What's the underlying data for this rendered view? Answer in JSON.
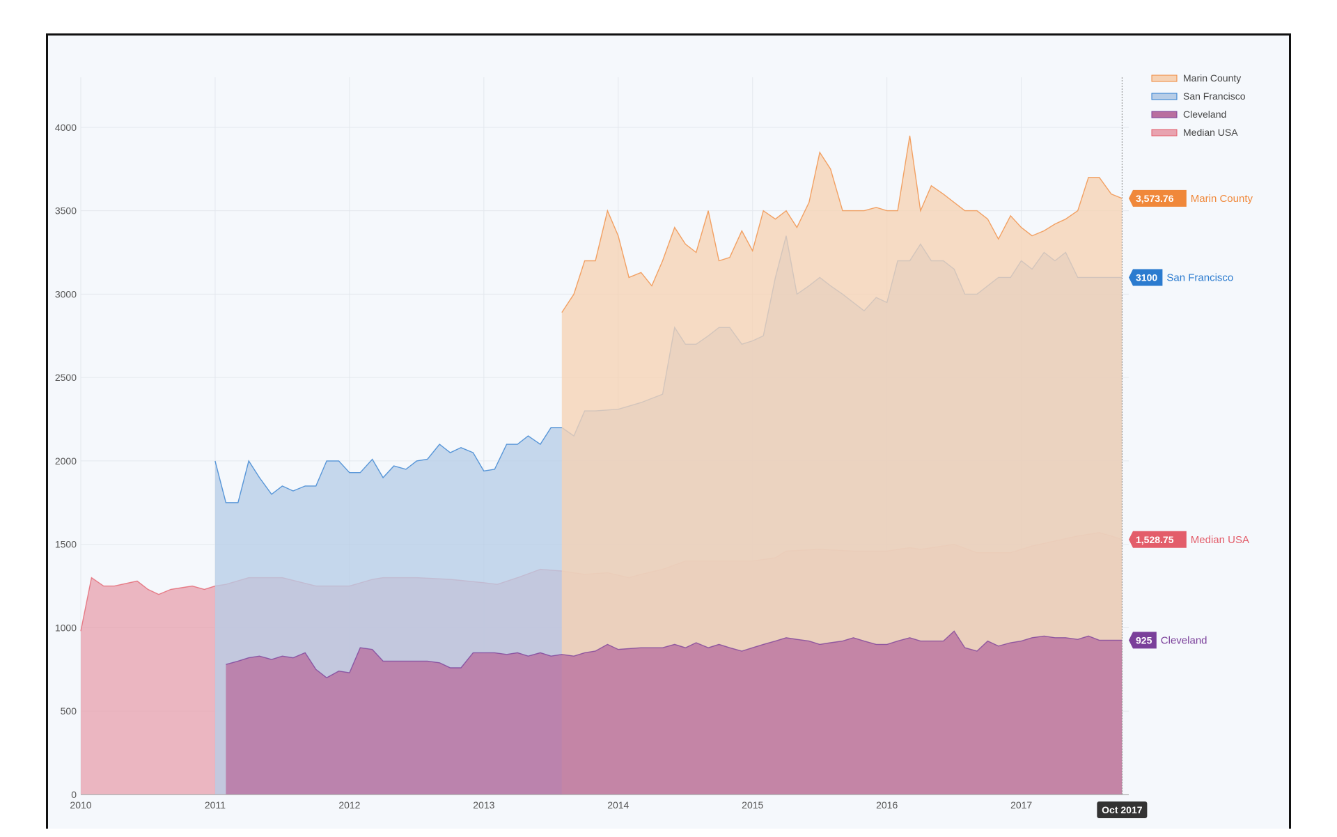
{
  "chart_data": {
    "type": "area",
    "title": "",
    "xlabel": "",
    "ylabel": "",
    "ylim": [
      0,
      4300
    ],
    "xlim": [
      2010.0,
      2017.8
    ],
    "y_ticks": [
      "0",
      "500",
      "1000",
      "1500",
      "2000",
      "2500",
      "3000",
      "3500",
      "4000"
    ],
    "x_ticks": [
      "2010",
      "2011",
      "2012",
      "2013",
      "2014",
      "2015",
      "2016",
      "2017"
    ],
    "x_tick_values": [
      2010,
      2011,
      2012,
      2013,
      2014,
      2015,
      2016,
      2017
    ],
    "y_tick_values": [
      0,
      500,
      1000,
      1500,
      2000,
      2500,
      3000,
      3500,
      4000
    ],
    "grid": true,
    "legend_position": "top-right",
    "cursor_label": "Oct 2017",
    "series": [
      {
        "name": "Median USA",
        "color": "#e35d6a",
        "fill": "#e8a3b0",
        "end_value_label": "1,528.75",
        "x": [
          2010.0,
          2010.08,
          2010.17,
          2010.25,
          2010.42,
          2010.5,
          2010.58,
          2010.67,
          2010.75,
          2010.83,
          2010.92,
          2011.0,
          2011.08,
          2011.25,
          2011.5,
          2011.75,
          2012.0,
          2012.17,
          2012.25,
          2012.5,
          2012.75,
          2013.0,
          2013.1,
          2013.25,
          2013.42,
          2013.58,
          2013.75,
          2013.92,
          2014.08,
          2014.17,
          2014.33,
          2014.5,
          2014.75,
          2015.0,
          2015.17,
          2015.25,
          2015.5,
          2015.75,
          2016.0,
          2016.17,
          2016.25,
          2016.5,
          2016.67,
          2016.92,
          2017.08,
          2017.25,
          2017.42,
          2017.5,
          2017.58,
          2017.67,
          2017.75
        ],
        "y": [
          980,
          1300,
          1250,
          1250,
          1280,
          1230,
          1200,
          1230,
          1240,
          1250,
          1230,
          1250,
          1260,
          1300,
          1300,
          1250,
          1250,
          1290,
          1300,
          1300,
          1290,
          1270,
          1260,
          1300,
          1350,
          1340,
          1320,
          1330,
          1300,
          1320,
          1350,
          1400,
          1400,
          1400,
          1420,
          1460,
          1470,
          1460,
          1460,
          1480,
          1470,
          1500,
          1450,
          1450,
          1490,
          1520,
          1550,
          1560,
          1570,
          1550,
          1529
        ]
      },
      {
        "name": "San Francisco",
        "color": "#2b7bcf",
        "fill": "#b7cde7",
        "end_value_label": "3100",
        "x": [
          2011.0,
          2011.08,
          2011.17,
          2011.25,
          2011.33,
          2011.42,
          2011.5,
          2011.58,
          2011.67,
          2011.75,
          2011.83,
          2011.92,
          2012.0,
          2012.08,
          2012.17,
          2012.25,
          2012.33,
          2012.42,
          2012.5,
          2012.58,
          2012.67,
          2012.75,
          2012.83,
          2012.92,
          2013.0,
          2013.08,
          2013.17,
          2013.25,
          2013.33,
          2013.42,
          2013.5,
          2013.58,
          2013.67,
          2013.75,
          2013.83,
          2014.0,
          2014.17,
          2014.33,
          2014.42,
          2014.5,
          2014.58,
          2014.67,
          2014.75,
          2014.83,
          2014.92,
          2015.0,
          2015.08,
          2015.17,
          2015.25,
          2015.33,
          2015.42,
          2015.5,
          2015.58,
          2015.67,
          2015.75,
          2015.83,
          2015.92,
          2016.0,
          2016.08,
          2016.17,
          2016.25,
          2016.33,
          2016.42,
          2016.5,
          2016.58,
          2016.67,
          2016.75,
          2016.83,
          2016.92,
          2017.0,
          2017.08,
          2017.17,
          2017.25,
          2017.33,
          2017.42,
          2017.5,
          2017.58,
          2017.67,
          2017.75
        ],
        "y": [
          2000,
          1750,
          1750,
          2000,
          1900,
          1800,
          1850,
          1820,
          1850,
          1850,
          2000,
          2000,
          1930,
          1930,
          2010,
          1900,
          1970,
          1950,
          2000,
          2010,
          2100,
          2050,
          2080,
          2050,
          1940,
          1950,
          2100,
          2100,
          2150,
          2100,
          2200,
          2200,
          2150,
          2300,
          2300,
          2310,
          2350,
          2400,
          2800,
          2700,
          2700,
          2750,
          2800,
          2800,
          2700,
          2720,
          2750,
          3100,
          3350,
          3000,
          3050,
          3100,
          3050,
          3000,
          2950,
          2900,
          2980,
          2950,
          3200,
          3200,
          3300,
          3200,
          3200,
          3150,
          3000,
          3000,
          3050,
          3100,
          3100,
          3200,
          3150,
          3250,
          3200,
          3250,
          3100,
          3100,
          3100,
          3100,
          3100
        ]
      },
      {
        "name": "Marin County",
        "color": "#f0883a",
        "fill": "#f6d2b4",
        "end_value_label": "3,573.76",
        "x": [
          2013.58,
          2013.67,
          2013.75,
          2013.83,
          2013.92,
          2014.0,
          2014.08,
          2014.17,
          2014.25,
          2014.33,
          2014.42,
          2014.5,
          2014.58,
          2014.67,
          2014.75,
          2014.83,
          2014.92,
          2015.0,
          2015.08,
          2015.17,
          2015.25,
          2015.33,
          2015.42,
          2015.5,
          2015.58,
          2015.67,
          2015.75,
          2015.83,
          2015.92,
          2016.0,
          2016.08,
          2016.17,
          2016.25,
          2016.33,
          2016.42,
          2016.5,
          2016.58,
          2016.67,
          2016.75,
          2016.83,
          2016.92,
          2017.0,
          2017.08,
          2017.17,
          2017.25,
          2017.33,
          2017.42,
          2017.5,
          2017.58,
          2017.67,
          2017.75
        ],
        "y": [
          2890,
          3000,
          3200,
          3200,
          3500,
          3350,
          3100,
          3130,
          3050,
          3200,
          3400,
          3300,
          3250,
          3500,
          3200,
          3220,
          3380,
          3260,
          3500,
          3450,
          3500,
          3400,
          3550,
          3850,
          3750,
          3500,
          3500,
          3500,
          3520,
          3500,
          3500,
          3950,
          3500,
          3650,
          3600,
          3550,
          3500,
          3500,
          3450,
          3330,
          3470,
          3400,
          3350,
          3380,
          3420,
          3450,
          3500,
          3700,
          3700,
          3600,
          3574
        ]
      },
      {
        "name": "Cleveland",
        "color": "#7a3f9a",
        "fill": "#b96f9f",
        "end_value_label": "925",
        "x": [
          2011.08,
          2011.17,
          2011.25,
          2011.33,
          2011.42,
          2011.5,
          2011.58,
          2011.67,
          2011.75,
          2011.83,
          2011.92,
          2012.0,
          2012.08,
          2012.17,
          2012.25,
          2012.33,
          2012.42,
          2012.5,
          2012.58,
          2012.67,
          2012.75,
          2012.83,
          2012.92,
          2013.0,
          2013.08,
          2013.17,
          2013.25,
          2013.33,
          2013.42,
          2013.5,
          2013.58,
          2013.67,
          2013.75,
          2013.83,
          2013.92,
          2014.0,
          2014.17,
          2014.33,
          2014.42,
          2014.5,
          2014.58,
          2014.67,
          2014.75,
          2014.83,
          2014.92,
          2015.0,
          2015.08,
          2015.17,
          2015.25,
          2015.33,
          2015.42,
          2015.5,
          2015.58,
          2015.67,
          2015.75,
          2015.83,
          2015.92,
          2016.0,
          2016.08,
          2016.17,
          2016.25,
          2016.33,
          2016.42,
          2016.5,
          2016.58,
          2016.67,
          2016.75,
          2016.83,
          2016.92,
          2017.0,
          2017.08,
          2017.17,
          2017.25,
          2017.33,
          2017.42,
          2017.5,
          2017.58,
          2017.67,
          2017.75
        ],
        "y": [
          780,
          800,
          820,
          830,
          810,
          830,
          820,
          850,
          750,
          700,
          740,
          730,
          880,
          870,
          800,
          800,
          800,
          800,
          800,
          790,
          760,
          760,
          850,
          850,
          850,
          840,
          850,
          830,
          850,
          830,
          840,
          830,
          850,
          860,
          900,
          870,
          880,
          880,
          900,
          880,
          910,
          880,
          900,
          880,
          860,
          880,
          900,
          920,
          940,
          930,
          920,
          900,
          910,
          920,
          940,
          920,
          900,
          900,
          920,
          940,
          920,
          920,
          920,
          980,
          880,
          860,
          920,
          890,
          910,
          920,
          940,
          950,
          940,
          940,
          930,
          950,
          925,
          925,
          925
        ]
      }
    ]
  }
}
